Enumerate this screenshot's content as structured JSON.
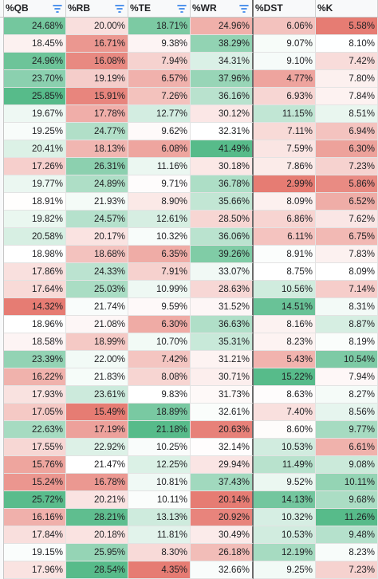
{
  "headers": [
    "%QB",
    "%RB",
    "%TE",
    "%WR",
    "%DST",
    "%K"
  ],
  "filter_icon": "filter-icon",
  "colors": {
    "high": "#57bb8a",
    "mid": "#ffffff",
    "low": "#e67c73"
  },
  "rows": [
    [
      "24.68%",
      "20.00%",
      "18.71%",
      "24.96%",
      "6.06%",
      "5.58%"
    ],
    [
      "18.45%",
      "16.71%",
      "9.38%",
      "38.29%",
      "9.07%",
      "8.10%"
    ],
    [
      "24.96%",
      "16.08%",
      "7.94%",
      "34.31%",
      "9.10%",
      "7.42%"
    ],
    [
      "23.70%",
      "19.19%",
      "6.57%",
      "37.96%",
      "4.77%",
      "7.80%"
    ],
    [
      "25.85%",
      "15.91%",
      "7.26%",
      "36.16%",
      "6.93%",
      "7.84%"
    ],
    [
      "19.67%",
      "17.78%",
      "12.77%",
      "30.12%",
      "11.15%",
      "8.51%"
    ],
    [
      "19.25%",
      "24.77%",
      "9.62%",
      "32.31%",
      "7.11%",
      "6.94%"
    ],
    [
      "20.41%",
      "18.13%",
      "6.08%",
      "41.49%",
      "7.59%",
      "6.30%"
    ],
    [
      "17.26%",
      "26.31%",
      "11.16%",
      "30.18%",
      "7.86%",
      "7.23%"
    ],
    [
      "19.77%",
      "24.89%",
      "9.71%",
      "36.78%",
      "2.99%",
      "5.86%"
    ],
    [
      "18.91%",
      "21.93%",
      "8.90%",
      "35.66%",
      "8.09%",
      "6.52%"
    ],
    [
      "19.82%",
      "24.57%",
      "12.61%",
      "28.50%",
      "6.86%",
      "7.62%"
    ],
    [
      "20.58%",
      "20.17%",
      "10.32%",
      "36.06%",
      "6.11%",
      "6.75%"
    ],
    [
      "18.98%",
      "18.68%",
      "6.35%",
      "39.26%",
      "8.91%",
      "7.83%"
    ],
    [
      "17.86%",
      "24.33%",
      "7.91%",
      "33.07%",
      "8.75%",
      "8.09%"
    ],
    [
      "17.64%",
      "25.03%",
      "10.99%",
      "28.63%",
      "10.56%",
      "7.14%"
    ],
    [
      "14.32%",
      "21.74%",
      "9.59%",
      "31.52%",
      "14.51%",
      "8.31%"
    ],
    [
      "18.96%",
      "21.08%",
      "6.30%",
      "36.63%",
      "8.16%",
      "8.87%"
    ],
    [
      "18.58%",
      "18.99%",
      "10.70%",
      "35.31%",
      "8.23%",
      "8.19%"
    ],
    [
      "23.39%",
      "22.00%",
      "7.42%",
      "31.21%",
      "5.43%",
      "10.54%"
    ],
    [
      "16.22%",
      "21.83%",
      "8.08%",
      "30.71%",
      "15.22%",
      "7.94%"
    ],
    [
      "17.93%",
      "23.61%",
      "9.83%",
      "31.73%",
      "8.63%",
      "8.27%"
    ],
    [
      "17.05%",
      "15.49%",
      "18.89%",
      "32.61%",
      "7.40%",
      "8.56%"
    ],
    [
      "22.63%",
      "17.19%",
      "21.18%",
      "20.63%",
      "8.60%",
      "9.77%"
    ],
    [
      "17.55%",
      "22.92%",
      "10.25%",
      "32.14%",
      "10.53%",
      "6.61%"
    ],
    [
      "15.76%",
      "21.47%",
      "12.25%",
      "29.94%",
      "11.49%",
      "9.08%"
    ],
    [
      "15.24%",
      "16.78%",
      "10.81%",
      "37.43%",
      "9.52%",
      "10.11%"
    ],
    [
      "25.72%",
      "20.21%",
      "10.11%",
      "20.14%",
      "14.13%",
      "9.68%"
    ],
    [
      "16.16%",
      "28.21%",
      "13.13%",
      "20.92%",
      "10.32%",
      "11.26%"
    ],
    [
      "17.84%",
      "20.18%",
      "11.81%",
      "30.49%",
      "10.53%",
      "9.48%"
    ],
    [
      "19.15%",
      "25.95%",
      "8.30%",
      "26.18%",
      "12.19%",
      "8.23%"
    ],
    [
      "17.96%",
      "28.54%",
      "4.35%",
      "32.66%",
      "9.25%",
      "7.23%"
    ]
  ]
}
